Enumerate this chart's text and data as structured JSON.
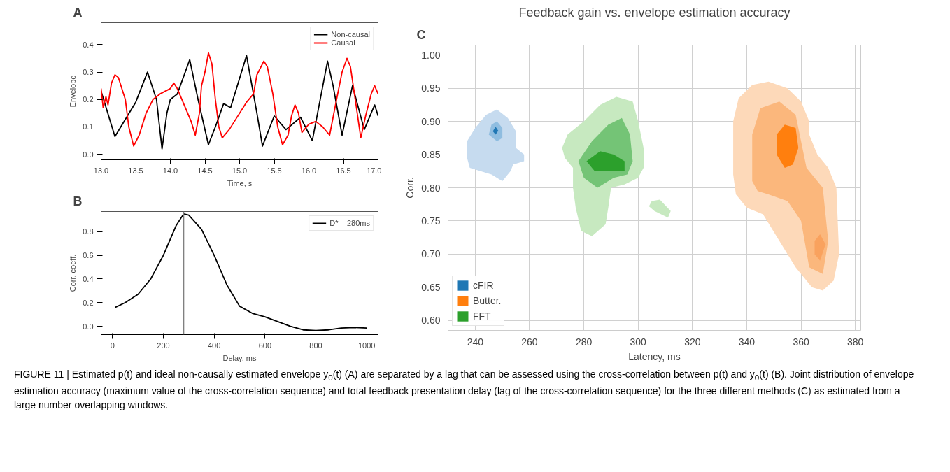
{
  "chart_data": [
    {
      "type": "line",
      "title": "A",
      "xlabel": "Time, s",
      "ylabel": "Envelope",
      "xlim": [
        13,
        17
      ],
      "ylim": [
        -0.02,
        0.48
      ],
      "xticks": [
        {
          "value": 13,
          "label": "13.0"
        },
        13.5,
        {
          "value": 14,
          "label": "14.0"
        },
        14.5,
        {
          "value": 15,
          "label": "15.0"
        },
        15.5,
        {
          "value": 16,
          "label": "16.0"
        },
        16.5,
        {
          "value": 17,
          "label": "17.0"
        }
      ],
      "yticks": [
        {
          "value": 0,
          "label": "0.0"
        },
        0.1,
        0.2,
        0.3,
        0.4
      ],
      "grid": false,
      "legend": "top right",
      "series": [
        {
          "name": "Non-causal",
          "color": "#000000",
          "x": [
            13.0,
            13.2,
            13.5,
            13.67,
            13.8,
            13.88,
            13.95,
            14.0,
            14.1,
            14.28,
            14.4,
            14.55,
            14.65,
            14.77,
            14.87,
            15.1,
            15.25,
            15.33,
            15.5,
            15.67,
            15.88,
            16.05,
            16.27,
            16.35,
            16.48,
            16.63,
            16.8,
            16.95,
            17.0
          ],
          "values": [
            0.23,
            0.065,
            0.19,
            0.3,
            0.2,
            0.02,
            0.15,
            0.2,
            0.22,
            0.345,
            0.2,
            0.035,
            0.1,
            0.185,
            0.17,
            0.36,
            0.15,
            0.03,
            0.14,
            0.09,
            0.135,
            0.05,
            0.34,
            0.25,
            0.07,
            0.25,
            0.09,
            0.18,
            0.14
          ]
        },
        {
          "name": "Causal",
          "color": "#ff0000",
          "x": [
            13.0,
            13.03,
            13.07,
            13.1,
            13.15,
            13.2,
            13.25,
            13.35,
            13.4,
            13.47,
            13.55,
            13.65,
            13.75,
            13.85,
            14.0,
            14.05,
            14.1,
            14.2,
            14.3,
            14.36,
            14.42,
            14.45,
            14.5,
            14.55,
            14.6,
            14.65,
            14.7,
            14.75,
            14.85,
            15.0,
            15.1,
            15.2,
            15.25,
            15.35,
            15.4,
            15.48,
            15.55,
            15.62,
            15.7,
            15.75,
            15.8,
            15.85,
            15.9,
            16.0,
            16.1,
            16.2,
            16.3,
            16.4,
            16.48,
            16.55,
            16.6,
            16.67,
            16.75,
            16.82,
            16.9,
            16.95,
            17.0
          ],
          "values": [
            0.24,
            0.17,
            0.21,
            0.18,
            0.26,
            0.29,
            0.28,
            0.2,
            0.1,
            0.03,
            0.07,
            0.15,
            0.2,
            0.22,
            0.24,
            0.26,
            0.24,
            0.18,
            0.12,
            0.07,
            0.15,
            0.25,
            0.3,
            0.37,
            0.33,
            0.2,
            0.1,
            0.06,
            0.09,
            0.15,
            0.19,
            0.22,
            0.29,
            0.34,
            0.32,
            0.22,
            0.1,
            0.035,
            0.07,
            0.14,
            0.18,
            0.15,
            0.08,
            0.11,
            0.12,
            0.1,
            0.07,
            0.2,
            0.3,
            0.35,
            0.32,
            0.2,
            0.06,
            0.14,
            0.22,
            0.25,
            0.22
          ]
        }
      ]
    },
    {
      "type": "line",
      "title": "B",
      "xlabel": "Delay, ms",
      "ylabel": "Corr. coeff.",
      "xlim": [
        -45,
        1045
      ],
      "ylim": [
        -0.07,
        0.97
      ],
      "xticks": [
        0,
        200,
        400,
        600,
        800,
        1000
      ],
      "yticks": [
        {
          "value": 0,
          "label": "0.0"
        },
        0.2,
        0.4,
        0.6,
        0.8
      ],
      "grid": false,
      "legend": "top right",
      "ref_lines": [
        {
          "axis": "x",
          "value": 280,
          "color": "#808080"
        }
      ],
      "series": [
        {
          "name": "D* = 280ms",
          "color": "#000000",
          "x": [
            10,
            50,
            100,
            150,
            200,
            250,
            280,
            300,
            350,
            400,
            450,
            500,
            550,
            600,
            650,
            700,
            750,
            800,
            850,
            900,
            950,
            1000
          ],
          "values": [
            0.16,
            0.2,
            0.27,
            0.4,
            0.6,
            0.85,
            0.95,
            0.94,
            0.82,
            0.6,
            0.35,
            0.17,
            0.11,
            0.08,
            0.04,
            0.0,
            -0.03,
            -0.035,
            -0.03,
            -0.015,
            -0.01,
            -0.015
          ]
        }
      ]
    },
    {
      "type": "area",
      "title": "Feedback gain vs. envelope estimation accuracy",
      "xlabel": "Latency, ms",
      "ylabel": "Corr.",
      "xlim": [
        230,
        382
      ],
      "ylim": [
        0.585,
        1.015
      ],
      "xticks": [
        240,
        260,
        280,
        300,
        320,
        340,
        360,
        380
      ],
      "yticks": [
        {
          "value": 0.6,
          "label": "0.60"
        },
        0.65,
        {
          "value": 0.7,
          "label": "0.70"
        },
        0.75,
        {
          "value": 0.8,
          "label": "0.80"
        },
        0.85,
        {
          "value": 0.9,
          "label": "0.90"
        },
        0.95,
        {
          "value": 1.0,
          "label": "1.00"
        }
      ],
      "grid": true,
      "legend": "bottom left",
      "annotations": [
        "C",
        "FIGURE 11 | Estimated p(t) and ideal non-causally estimated envelope y$_{0}$(t) (A) are separated by a lag that can be assessed using the cross-correlation between p(t) and y$_{0}$(t) (B). Joint distribution of envelope estimation accuracy (maximum value of the cross-correlation sequence) and total feedback presentation delay (lag of the cross-correlation sequence) for the three different methods (C) as estimated from a large number overlapping windows."
      ],
      "series": [
        {
          "color": "#c6dbef",
          "x": [
            237,
            237,
            240,
            244,
            248,
            252,
            255,
            255,
            258,
            258,
            254,
            253,
            250,
            246,
            242,
            238
          ],
          "values": [
            0.845,
            0.87,
            0.89,
            0.91,
            0.918,
            0.905,
            0.885,
            0.86,
            0.85,
            0.84,
            0.835,
            0.825,
            0.81,
            0.82,
            0.825,
            0.83
          ]
        },
        {
          "color": "#8fbde0",
          "x": [
            245,
            246,
            248,
            250,
            250,
            248
          ],
          "values": [
            0.88,
            0.895,
            0.9,
            0.89,
            0.875,
            0.87
          ]
        },
        {
          "color": "#fdd9b9",
          "x": [
            335,
            335,
            337,
            342,
            348,
            355,
            360,
            363,
            363,
            366,
            370,
            373,
            374,
            372,
            368,
            364,
            358,
            352,
            346,
            340,
            336
          ],
          "values": [
            0.82,
            0.9,
            0.935,
            0.955,
            0.96,
            0.95,
            0.93,
            0.9,
            0.88,
            0.85,
            0.83,
            0.8,
            0.7,
            0.66,
            0.645,
            0.65,
            0.68,
            0.72,
            0.76,
            0.77,
            0.79
          ]
        },
        {
          "color": "#fbb77c",
          "x": [
            342,
            342,
            345,
            352,
            358,
            360,
            362,
            368,
            370,
            368,
            363,
            360,
            355,
            348,
            344
          ],
          "values": [
            0.81,
            0.88,
            0.92,
            0.93,
            0.91,
            0.87,
            0.83,
            0.8,
            0.72,
            0.67,
            0.68,
            0.75,
            0.78,
            0.79,
            0.795
          ]
        },
        {
          "color": "#f9a25e",
          "x": [
            365,
            367,
            369,
            367,
            365
          ],
          "values": [
            0.72,
            0.73,
            0.715,
            0.69,
            0.7
          ]
        },
        {
          "color": "#c7e9c0",
          "x": [
            272,
            274,
            280,
            286,
            292,
            298,
            300,
            302,
            302,
            300,
            295,
            290,
            289,
            288,
            283,
            279,
            277,
            276,
            276,
            273
          ],
          "values": [
            0.86,
            0.88,
            0.9,
            0.925,
            0.937,
            0.93,
            0.9,
            0.86,
            0.83,
            0.815,
            0.805,
            0.8,
            0.77,
            0.745,
            0.727,
            0.735,
            0.77,
            0.8,
            0.83,
            0.845
          ]
        },
        {
          "color": "#c7e9c0",
          "x": [
            305,
            308,
            312,
            311,
            306,
            304
          ],
          "values": [
            0.78,
            0.782,
            0.765,
            0.755,
            0.765,
            0.772
          ]
        },
        {
          "color": "#74c476",
          "x": [
            278,
            283,
            289,
            294,
            297,
            298,
            296,
            291,
            285,
            280
          ],
          "values": [
            0.84,
            0.87,
            0.895,
            0.905,
            0.88,
            0.84,
            0.82,
            0.815,
            0.8,
            0.815
          ]
        },
        {
          "name": "cFIR",
          "color": "#1f77b4",
          "x": [
            246.5,
            247.5,
            248.5,
            247.5
          ],
          "values": [
            0.885,
            0.892,
            0.886,
            0.88
          ]
        },
        {
          "name": "Butter.",
          "color": "#ff7f0e",
          "x": [
            351,
            351,
            354,
            358,
            359,
            357,
            354
          ],
          "values": [
            0.85,
            0.88,
            0.895,
            0.89,
            0.86,
            0.835,
            0.83
          ]
        },
        {
          "name": "FFT",
          "color": "#2ca02c",
          "x": [
            281,
            286,
            291,
            295,
            295,
            290,
            284
          ],
          "values": [
            0.84,
            0.855,
            0.85,
            0.84,
            0.825,
            0.825,
            0.825
          ]
        }
      ]
    }
  ]
}
